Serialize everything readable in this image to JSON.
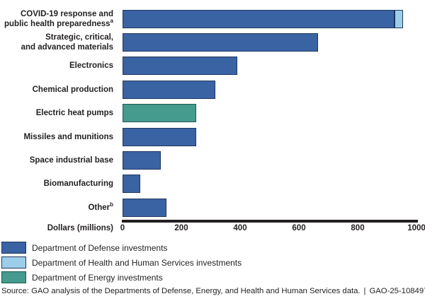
{
  "colors": {
    "dod": {
      "fill": "#3a63a3",
      "border": "#20375f"
    },
    "hhs": {
      "fill": "#9ccee9",
      "border": "#20375f"
    },
    "doe": {
      "fill": "#459b8d",
      "border": "#1c5a52"
    },
    "axis": "#231f20"
  },
  "chart_data": {
    "type": "bar",
    "orientation": "horizontal",
    "xlabel": "Dollars (millions)",
    "xlim": [
      0,
      1000
    ],
    "x_ticks": [
      {
        "value": 0,
        "label": "0"
      },
      {
        "value": 200,
        "label": "200"
      },
      {
        "value": 400,
        "label": "400"
      },
      {
        "value": 600,
        "label": "600"
      },
      {
        "value": 800,
        "label": "800"
      },
      {
        "value": 1000,
        "label": "1000"
      }
    ],
    "bars": [
      {
        "label_lines": [
          "COVID-19 response and",
          "public health preparedness"
        ],
        "sup": "a",
        "segments": [
          {
            "dept": "dod",
            "value": 925
          },
          {
            "dept": "hhs",
            "value": 30
          }
        ]
      },
      {
        "label_lines": [
          "Strategic, critical,",
          "and advanced materials"
        ],
        "sup": "",
        "segments": [
          {
            "dept": "dod",
            "value": 665
          }
        ]
      },
      {
        "label_lines": [
          "Electronics"
        ],
        "sup": "",
        "segments": [
          {
            "dept": "dod",
            "value": 390
          }
        ]
      },
      {
        "label_lines": [
          "Chemical production"
        ],
        "sup": "",
        "segments": [
          {
            "dept": "dod",
            "value": 315
          }
        ]
      },
      {
        "label_lines": [
          "Electric heat pumps"
        ],
        "sup": "",
        "segments": [
          {
            "dept": "doe",
            "value": 250
          }
        ]
      },
      {
        "label_lines": [
          "Missiles and munitions"
        ],
        "sup": "",
        "segments": [
          {
            "dept": "dod",
            "value": 250
          }
        ]
      },
      {
        "label_lines": [
          "Space industrial base"
        ],
        "sup": "",
        "segments": [
          {
            "dept": "dod",
            "value": 130
          }
        ]
      },
      {
        "label_lines": [
          "Biomanufacturing"
        ],
        "sup": "",
        "segments": [
          {
            "dept": "dod",
            "value": 60
          }
        ]
      },
      {
        "label_lines": [
          "Other"
        ],
        "sup": "b",
        "segments": [
          {
            "dept": "dod",
            "value": 150
          }
        ]
      }
    ],
    "legend_position": "bottom-left",
    "grid": false
  },
  "legend": {
    "items": [
      {
        "key": "dod",
        "label": "Department of Defense investments"
      },
      {
        "key": "hhs",
        "label": "Department of Health and Human Services investments"
      },
      {
        "key": "doe",
        "label": "Department of Energy investments"
      }
    ]
  },
  "footer": {
    "source": "Source: GAO analysis of the Departments of Defense, Energy, and Health and Human Services data.",
    "separator": "|",
    "report_id": "GAO-25-108497"
  }
}
